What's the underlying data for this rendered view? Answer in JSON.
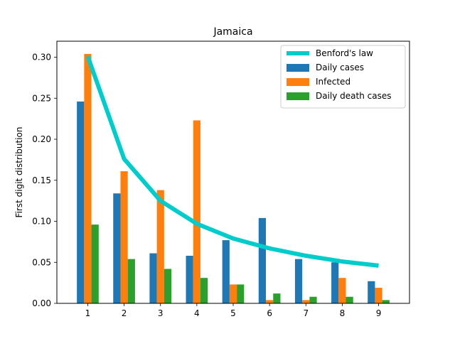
{
  "chart_data": {
    "type": "bar",
    "title": "Jamaica",
    "xlabel": "",
    "ylabel": "First digit distribution",
    "categories": [
      "1",
      "2",
      "3",
      "4",
      "5",
      "6",
      "7",
      "8",
      "9"
    ],
    "x": [
      1,
      2,
      3,
      4,
      5,
      6,
      7,
      8,
      9
    ],
    "xlim": [
      0.15,
      9.85
    ],
    "ylim": [
      0,
      0.3195
    ],
    "yticks": [
      0.0,
      0.05,
      0.1,
      0.15,
      0.2,
      0.25,
      0.3
    ],
    "ytick_labels": [
      "0.00",
      "0.05",
      "0.10",
      "0.15",
      "0.20",
      "0.25",
      "0.30"
    ],
    "grid": false,
    "legend_position": "top-right",
    "series": [
      {
        "name": "Benford's law",
        "type": "line",
        "color": "#00cccc",
        "values": [
          0.301,
          0.176,
          0.125,
          0.097,
          0.079,
          0.067,
          0.058,
          0.051,
          0.046
        ]
      },
      {
        "name": "Daily cases",
        "type": "bar",
        "color": "#1f77b4",
        "values": [
          0.246,
          0.134,
          0.061,
          0.058,
          0.077,
          0.104,
          0.054,
          0.05,
          0.027
        ]
      },
      {
        "name": "Infected",
        "type": "bar",
        "color": "#ff7f0e",
        "values": [
          0.304,
          0.161,
          0.138,
          0.223,
          0.023,
          0.004,
          0.004,
          0.031,
          0.019
        ]
      },
      {
        "name": "Daily death cases",
        "type": "bar",
        "color": "#2ca02c",
        "values": [
          0.096,
          0.054,
          0.042,
          0.031,
          0.023,
          0.012,
          0.008,
          0.008,
          0.004
        ]
      }
    ]
  }
}
